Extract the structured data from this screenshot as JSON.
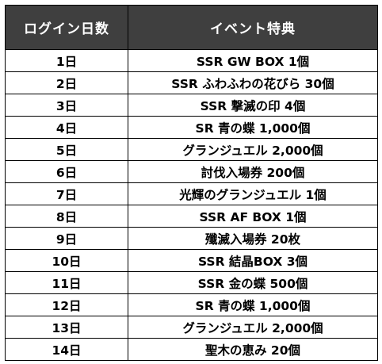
{
  "table": {
    "header": {
      "day": "ログイン日数",
      "bonus": "イベント特典"
    },
    "rows": [
      {
        "day": "1日",
        "bonus": "SSR GW BOX 1個"
      },
      {
        "day": "2日",
        "bonus": "SSR ふわふわの花びら 30個"
      },
      {
        "day": "3日",
        "bonus": "SSR 撃滅の印 4個"
      },
      {
        "day": "4日",
        "bonus": "SR 青の蝶 1,000個"
      },
      {
        "day": "5日",
        "bonus": "グランジュエル 2,000個"
      },
      {
        "day": "6日",
        "bonus": "討伐入場券 200個"
      },
      {
        "day": "7日",
        "bonus": "光輝のグランジュエル 1個"
      },
      {
        "day": "8日",
        "bonus": "SSR AF BOX 1個"
      },
      {
        "day": "9日",
        "bonus": "殲滅入場券 20枚"
      },
      {
        "day": "10日",
        "bonus": "SSR 結晶BOX 3個"
      },
      {
        "day": "11日",
        "bonus": "SSR 金の蝶 500個"
      },
      {
        "day": "12日",
        "bonus": "SR 青の蝶 1,000個"
      },
      {
        "day": "13日",
        "bonus": "グランジュエル 2,000個"
      },
      {
        "day": "14日",
        "bonus": "聖木の恵み 20個"
      }
    ]
  },
  "colors": {
    "header_bg": "#3f3f3f",
    "header_text": "#ffffff",
    "border": "#000000",
    "cell_bg": "#ffffff"
  }
}
